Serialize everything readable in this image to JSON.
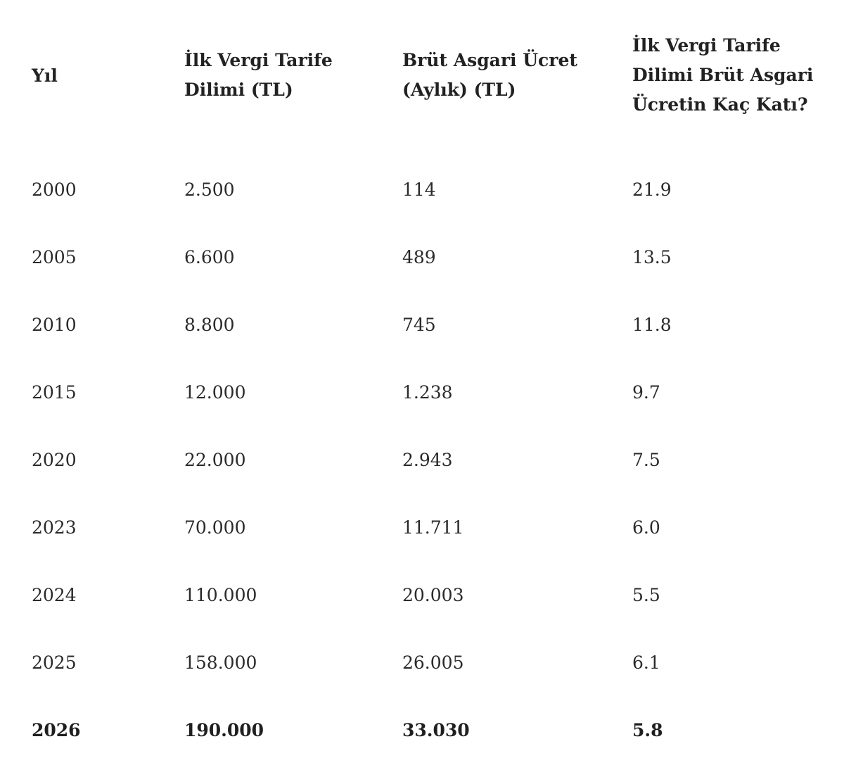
{
  "table": {
    "headers": [
      "Yıl",
      "İlk Vergi Tarife Dilimi (TL)",
      "Brüt Asgari Ücret (Aylık) (TL)",
      "İlk Vergi Tarife Dilimi Brüt Asgari Ücretin Kaç Katı?"
    ],
    "rows": [
      [
        "2000",
        "2.500",
        "114",
        "21.9"
      ],
      [
        "2005",
        "6.600",
        "489",
        "13.5"
      ],
      [
        "2010",
        "8.800",
        "745",
        "11.8"
      ],
      [
        "2015",
        "12.000",
        "1.238",
        "9.7"
      ],
      [
        "2020",
        "22.000",
        "2.943",
        "7.5"
      ],
      [
        "2023",
        "70.000",
        "11.711",
        "6.0"
      ],
      [
        "2024",
        "110.000",
        "20.003",
        "5.5"
      ],
      [
        "2025",
        "158.000",
        "26.005",
        "6.1"
      ],
      [
        "2026",
        "190.000",
        "33.030",
        "5.8"
      ]
    ]
  }
}
